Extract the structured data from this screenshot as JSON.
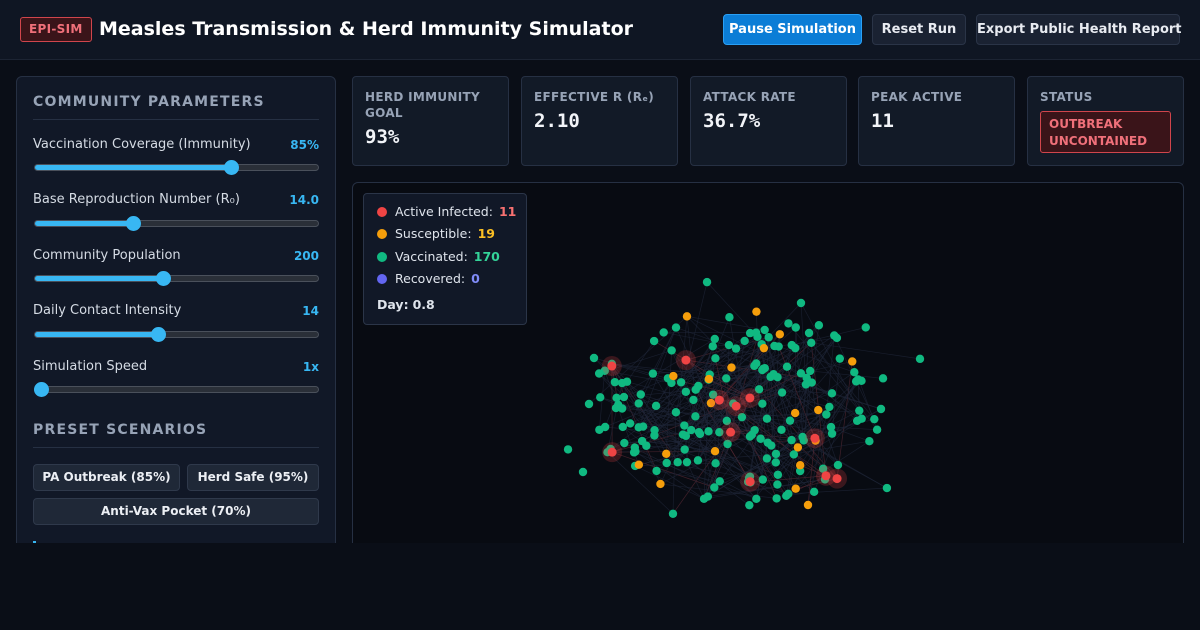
{
  "header": {
    "logo": "EPI-SIM",
    "title": "Measles Transmission & Herd Immunity Simulator",
    "buttons": {
      "pause": "Pause Simulation",
      "reset": "Reset Run",
      "export": "Export Public Health Report"
    }
  },
  "parameters": {
    "heading": "COMMUNITY PARAMETERS",
    "items": [
      {
        "label": "Vaccination Coverage (Immunity)",
        "value": "85%",
        "fraction": 0.7
      },
      {
        "label": "Base Reproduction Number (R₀)",
        "value": "14.0",
        "fraction": 0.34
      },
      {
        "label": "Community Population",
        "value": "200",
        "fraction": 0.45
      },
      {
        "label": "Daily Contact Intensity",
        "value": "14",
        "fraction": 0.43
      },
      {
        "label": "Simulation Speed",
        "value": "1x",
        "fraction": 0.0
      }
    ]
  },
  "presets": {
    "heading": "PRESET SCENARIOS",
    "items": [
      "PA Outbreak (85%)",
      "Herd Safe (95%)",
      "Anti-Vax Pocket (70%)"
    ]
  },
  "stats": {
    "herd_goal": {
      "label": "HERD IMMUNITY GOAL",
      "value": "93%"
    },
    "effective_r": {
      "label": "EFFECTIVE R (Rₑ)",
      "value": "2.10"
    },
    "attack_rate": {
      "label": "ATTACK RATE",
      "value": "36.7%"
    },
    "peak_active": {
      "label": "PEAK ACTIVE",
      "value": "11"
    },
    "status": {
      "label": "STATUS",
      "value": "OUTBREAK UNCONTAINED"
    }
  },
  "legend": {
    "items": [
      {
        "label": "Active Infected:",
        "count": "11",
        "color": "#ef4444"
      },
      {
        "label": "Susceptible:",
        "count": "19",
        "color": "#f59e0b"
      },
      {
        "label": "Vaccinated:",
        "count": "170",
        "color": "#10b981"
      },
      {
        "label": "Recovered:",
        "count": "0",
        "color": "#6366f1"
      }
    ],
    "day_label": "Day:",
    "day_value": "0.8"
  },
  "colors": {
    "accent": "#38b7f3",
    "infected": "#ef4444",
    "susceptible": "#f59e0b",
    "vaccinated": "#10b981",
    "recovered": "#6366f1",
    "danger": "#d0454c"
  }
}
